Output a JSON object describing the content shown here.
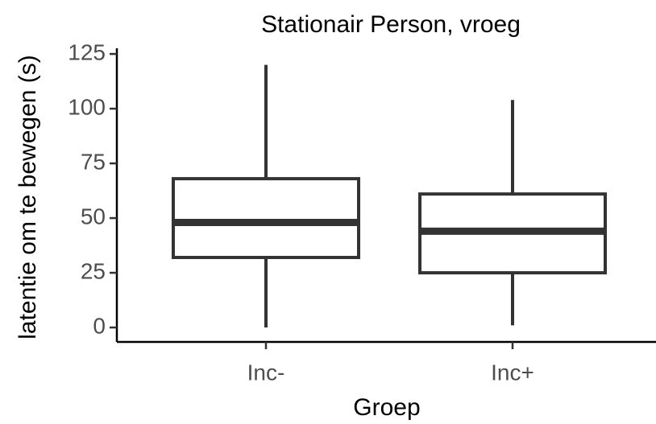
{
  "chart_data": {
    "type": "box",
    "title": "Stationair Person, vroeg",
    "x_label": "Groep",
    "y_label": "latentie om te bewegen (s)",
    "categories": [
      "Inc-",
      "Inc+"
    ],
    "boxes": [
      {
        "min": 0,
        "q1": 32,
        "median": 48,
        "q3": 68,
        "max": 120
      },
      {
        "min": 1,
        "q1": 25,
        "median": 44,
        "q3": 61,
        "max": 104
      }
    ],
    "color": "#333333",
    "ylim": [
      -6.6,
      127.6
    ],
    "yticks": [
      0,
      25,
      50,
      75,
      100,
      125
    ]
  }
}
